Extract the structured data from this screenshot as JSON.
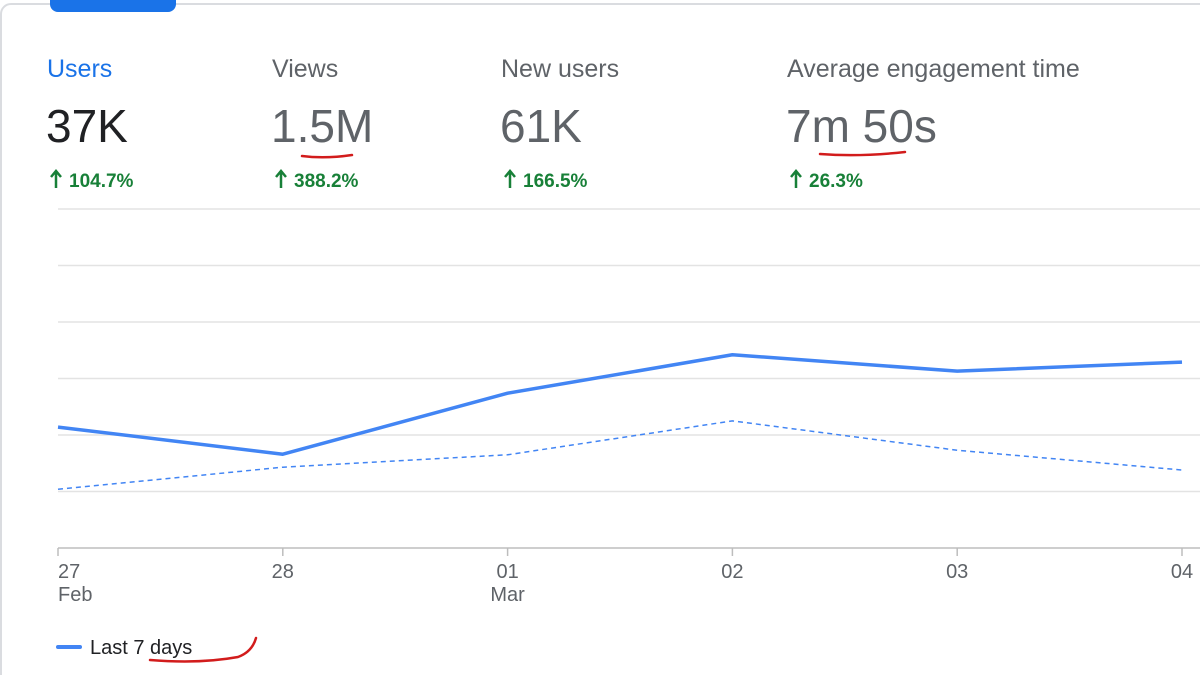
{
  "metrics": [
    {
      "label": "Users",
      "value": "37K",
      "change": "104.7%"
    },
    {
      "label": "Views",
      "value": "1.5M",
      "change": "388.2%"
    },
    {
      "label": "New users",
      "value": "61K",
      "change": "166.5%"
    },
    {
      "label": "Average engagement time",
      "value": "7m 50s",
      "change": "26.3%"
    }
  ],
  "chart_data": {
    "type": "line",
    "categories": [
      "27",
      "28",
      "01",
      "02",
      "03",
      "04"
    ],
    "months": [
      "Feb",
      null,
      "Mar",
      null,
      null,
      null
    ],
    "series": [
      {
        "name": "Last 7 days",
        "color": "#4285f4",
        "style": "solid",
        "values": [
          2.14,
          1.66,
          2.74,
          3.42,
          3.13,
          3.29
        ]
      },
      {
        "color": "#4285f4",
        "style": "dashed",
        "values": [
          1.04,
          1.43,
          1.65,
          2.25,
          1.73,
          1.38
        ]
      }
    ],
    "ylim": [
      0,
      6
    ],
    "yticks": [
      0,
      1,
      2,
      3,
      4,
      5,
      6
    ],
    "grid": true
  }
}
